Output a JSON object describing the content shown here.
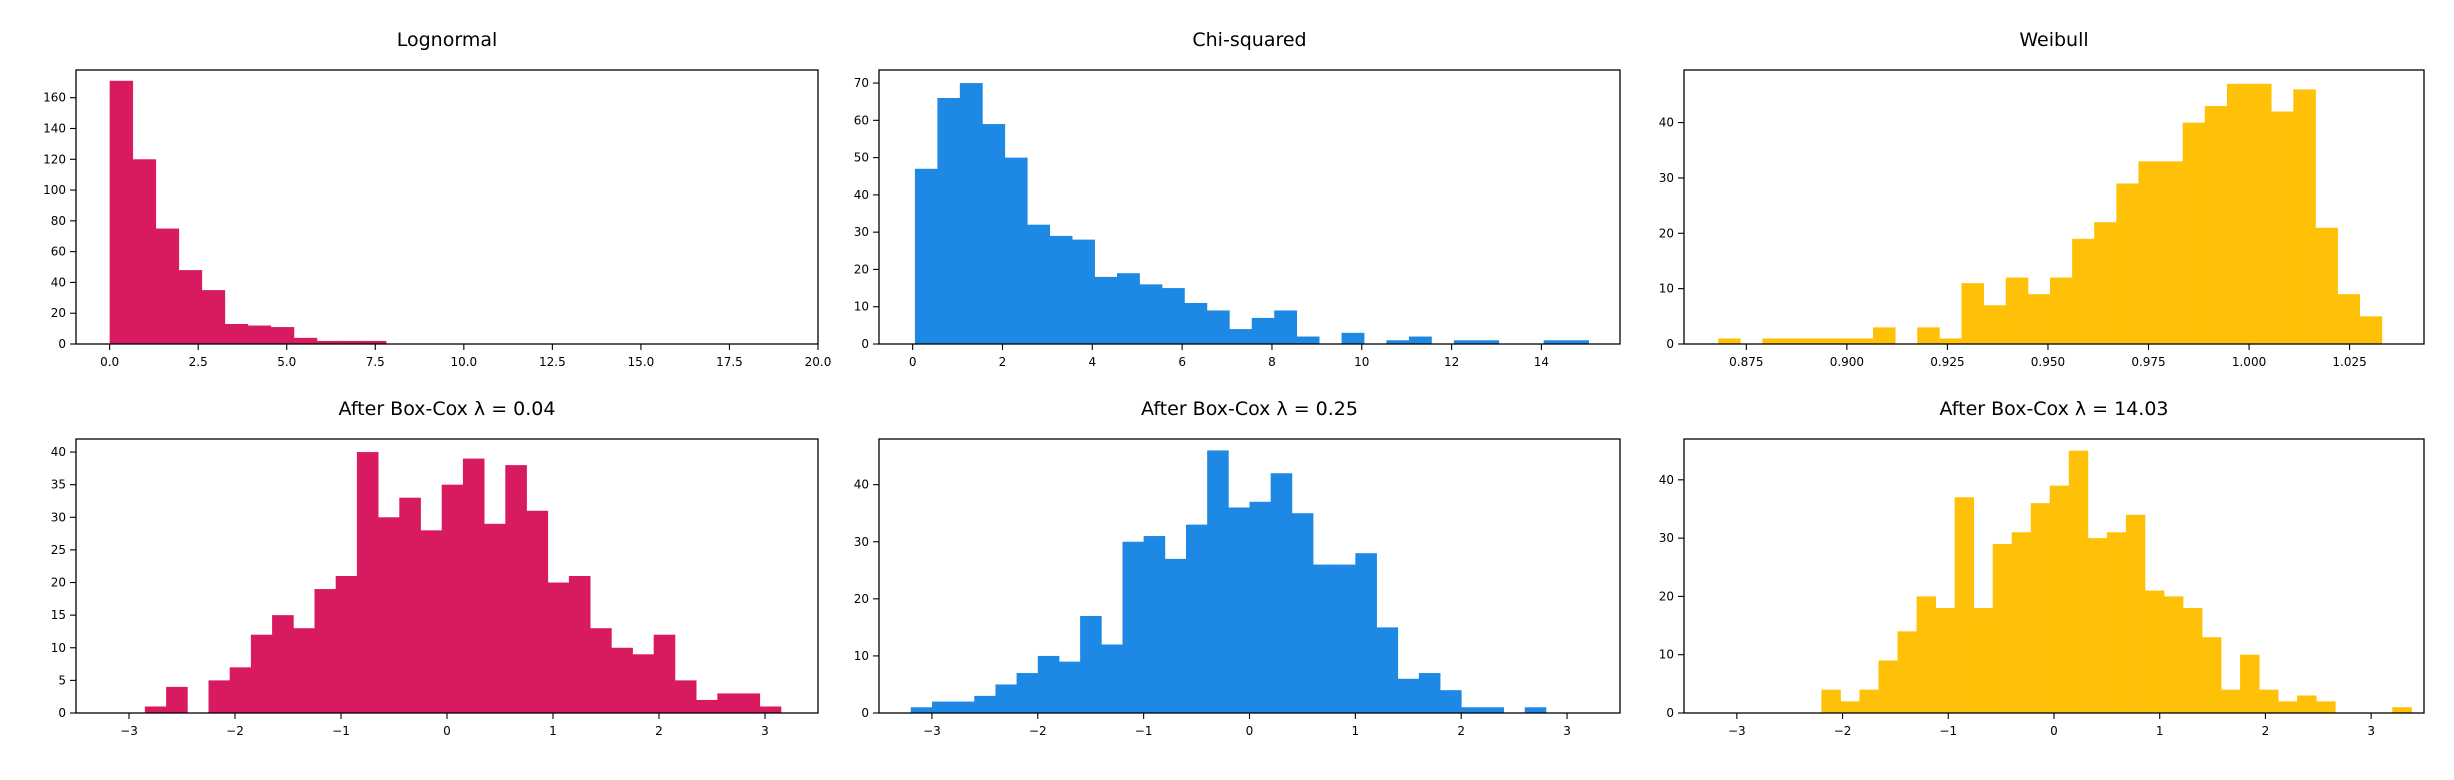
{
  "chart_data": [
    {
      "type": "bar",
      "title": "Lognormal",
      "color": "#D81B60",
      "xlim": [
        -0.95,
        20.0
      ],
      "ylim": [
        0,
        178
      ],
      "xticks": [
        0.0,
        2.5,
        5.0,
        7.5,
        10.0,
        12.5,
        15.0,
        17.5,
        20.0
      ],
      "xtick_labels": [
        "0.0",
        "2.5",
        "5.0",
        "7.5",
        "10.0",
        "12.5",
        "15.0",
        "17.5",
        "20.0"
      ],
      "yticks": [
        0,
        20,
        40,
        60,
        80,
        100,
        120,
        140,
        160
      ],
      "ytick_labels": [
        "0",
        "20",
        "40",
        "60",
        "80",
        "100",
        "120",
        "140",
        "160"
      ],
      "bin_start": 0.0,
      "bin_width": 0.65,
      "values": [
        171,
        120,
        75,
        48,
        35,
        13,
        12,
        11,
        4,
        2,
        2,
        2
      ]
    },
    {
      "type": "bar",
      "title": "Chi-squared",
      "color": "#1E88E5",
      "xlim": [
        -0.75,
        15.75
      ],
      "ylim": [
        0,
        73.5
      ],
      "xticks": [
        0,
        2,
        4,
        6,
        8,
        10,
        12,
        14
      ],
      "xtick_labels": [
        "0",
        "2",
        "4",
        "6",
        "8",
        "10",
        "12",
        "14"
      ],
      "yticks": [
        0,
        10,
        20,
        30,
        40,
        50,
        60,
        70
      ],
      "ytick_labels": [
        "0",
        "10",
        "20",
        "30",
        "40",
        "50",
        "60",
        "70"
      ],
      "bin_start": 0.05,
      "bin_width": 0.5,
      "values": [
        47,
        66,
        70,
        59,
        50,
        32,
        29,
        28,
        18,
        19,
        16,
        15,
        11,
        9,
        4,
        7,
        9,
        2,
        0,
        3,
        0,
        1,
        2,
        0,
        1,
        1,
        0,
        0,
        1,
        1
      ]
    },
    {
      "type": "bar",
      "title": "Weibull",
      "color": "#FFC107",
      "xlim": [
        0.8595,
        1.0435
      ],
      "ylim": [
        0,
        49.5
      ],
      "xticks": [
        0.875,
        0.9,
        0.925,
        0.95,
        0.975,
        1.0,
        1.025
      ],
      "xtick_labels": [
        "0.875",
        "0.900",
        "0.925",
        "0.950",
        "0.975",
        "1.000",
        "1.025"
      ],
      "yticks": [
        0,
        10,
        20,
        30,
        40
      ],
      "ytick_labels": [
        "0",
        "10",
        "20",
        "30",
        "40"
      ],
      "bin_start": 0.868,
      "bin_width": 0.0055,
      "values": [
        1,
        0,
        1,
        1,
        1,
        1,
        1,
        3,
        0,
        3,
        1,
        11,
        7,
        12,
        9,
        12,
        19,
        22,
        29,
        33,
        33,
        40,
        43,
        47,
        47,
        42,
        46,
        21,
        9,
        5
      ]
    },
    {
      "type": "bar",
      "title": "After Box-Cox λ = 0.04",
      "color": "#D81B60",
      "xlim": [
        -3.5,
        3.5
      ],
      "ylim": [
        0,
        42
      ],
      "xticks": [
        -3,
        -2,
        -1,
        0,
        1,
        2,
        3
      ],
      "xtick_labels": [
        "−3",
        "−2",
        "−1",
        "0",
        "1",
        "2",
        "3"
      ],
      "yticks": [
        0,
        5,
        10,
        15,
        20,
        25,
        30,
        35,
        40
      ],
      "ytick_labels": [
        "0",
        "5",
        "10",
        "15",
        "20",
        "25",
        "30",
        "35",
        "40"
      ],
      "bin_start": -2.85,
      "bin_width": 0.2,
      "values": [
        1,
        4,
        0,
        5,
        7,
        12,
        15,
        13,
        19,
        21,
        40,
        30,
        33,
        28,
        35,
        39,
        29,
        38,
        31,
        20,
        21,
        13,
        10,
        9,
        12,
        5,
        2,
        3,
        3,
        1
      ]
    },
    {
      "type": "bar",
      "title": "After Box-Cox λ = 0.25",
      "color": "#1E88E5",
      "xlim": [
        -3.5,
        3.5
      ],
      "ylim": [
        0,
        48
      ],
      "xticks": [
        -3,
        -2,
        -1,
        0,
        1,
        2,
        3
      ],
      "xtick_labels": [
        "−3",
        "−2",
        "−1",
        "0",
        "1",
        "2",
        "3"
      ],
      "yticks": [
        0,
        10,
        20,
        30,
        40
      ],
      "ytick_labels": [
        "0",
        "10",
        "20",
        "30",
        "40"
      ],
      "bin_start": -3.2,
      "bin_width": 0.2,
      "values": [
        1,
        2,
        2,
        3,
        5,
        7,
        10,
        9,
        17,
        12,
        30,
        31,
        27,
        33,
        46,
        36,
        37,
        42,
        35,
        26,
        26,
        28,
        15,
        6,
        7,
        4,
        1,
        1,
        0,
        1
      ]
    },
    {
      "type": "bar",
      "title": "After Box-Cox λ = 14.03",
      "color": "#FFC107",
      "xlim": [
        -3.5,
        3.5
      ],
      "ylim": [
        0,
        47
      ],
      "xticks": [
        -3,
        -2,
        -1,
        0,
        1,
        2,
        3
      ],
      "xtick_labels": [
        "−3",
        "−2",
        "−1",
        "0",
        "1",
        "2",
        "3"
      ],
      "yticks": [
        0,
        10,
        20,
        30,
        40
      ],
      "ytick_labels": [
        "0",
        "10",
        "20",
        "30",
        "40"
      ],
      "bin_start": -2.2,
      "bin_width": 0.18,
      "values": [
        4,
        2,
        4,
        9,
        14,
        20,
        18,
        37,
        18,
        29,
        31,
        36,
        39,
        45,
        30,
        31,
        34,
        21,
        20,
        18,
        13,
        4,
        10,
        4,
        2,
        3,
        2,
        0,
        0,
        0,
        1
      ]
    }
  ]
}
